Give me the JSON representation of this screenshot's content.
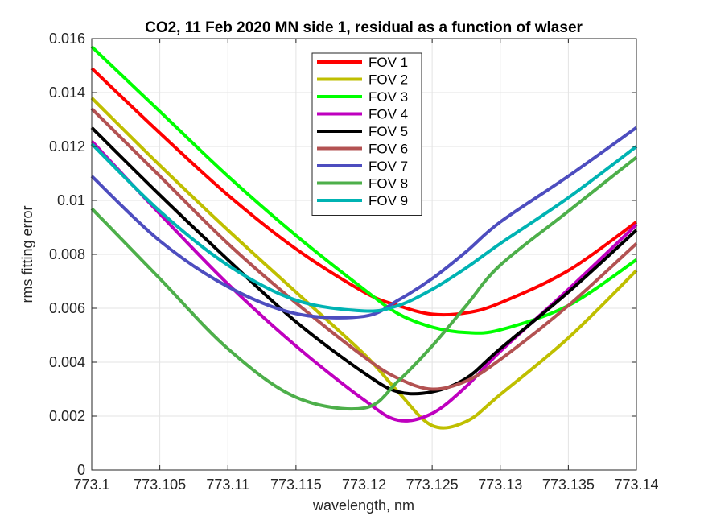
{
  "chart_data": {
    "type": "line",
    "title": "CO2, 11 Feb 2020 MN side 1, residual as a function of wlaser",
    "xlabel": "wavelength, nm",
    "ylabel": "rms fitting error",
    "xlim": [
      773.1,
      773.14
    ],
    "ylim": [
      0,
      0.016
    ],
    "xticks": [
      773.1,
      773.105,
      773.11,
      773.115,
      773.12,
      773.125,
      773.13,
      773.135,
      773.14
    ],
    "xtick_labels": [
      "773.1",
      "773.105",
      "773.11",
      "773.115",
      "773.12",
      "773.125",
      "773.13",
      "773.135",
      "773.14"
    ],
    "yticks": [
      0,
      0.002,
      0.004,
      0.006,
      0.008,
      0.01,
      0.012,
      0.014,
      0.016
    ],
    "ytick_labels": [
      "0",
      "0.002",
      "0.004",
      "0.006",
      "0.008",
      "0.01",
      "0.012",
      "0.014",
      "0.016"
    ],
    "grid": true,
    "legend_position": "top-center",
    "x": [
      773.1,
      773.105,
      773.11,
      773.115,
      773.12,
      773.1225,
      773.125,
      773.1275,
      773.13,
      773.135,
      773.14
    ],
    "series": [
      {
        "name": "FOV 1",
        "color": "#ff0000",
        "values": [
          0.0149,
          0.0125,
          0.0102,
          0.0082,
          0.0066,
          0.0061,
          0.00578,
          0.00583,
          0.0062,
          0.0074,
          0.0092
        ]
      },
      {
        "name": "FOV 2",
        "color": "#bfbf00",
        "values": [
          0.0138,
          0.0113,
          0.0089,
          0.0066,
          0.0043,
          0.0029,
          0.00165,
          0.0018,
          0.0028,
          0.0049,
          0.0074
        ]
      },
      {
        "name": "FOV 3",
        "color": "#00ff00",
        "values": [
          0.0157,
          0.0133,
          0.0109,
          0.0087,
          0.0067,
          0.0058,
          0.0053,
          0.0051,
          0.0052,
          0.0061,
          0.0078
        ]
      },
      {
        "name": "FOV 4",
        "color": "#bf00bf",
        "values": [
          0.0122,
          0.0095,
          0.0069,
          0.0046,
          0.0026,
          0.00185,
          0.0021,
          0.0031,
          0.0044,
          0.0067,
          0.0091
        ]
      },
      {
        "name": "FOV 5",
        "color": "#000000",
        "values": [
          0.0127,
          0.0102,
          0.0078,
          0.0055,
          0.0036,
          0.0029,
          0.0029,
          0.0034,
          0.0045,
          0.0066,
          0.0089
        ]
      },
      {
        "name": "FOV 6",
        "color": "#b35252",
        "values": [
          0.0134,
          0.0109,
          0.0084,
          0.0062,
          0.0042,
          0.0034,
          0.003,
          0.0033,
          0.0041,
          0.0061,
          0.0084
        ]
      },
      {
        "name": "FOV 7",
        "color": "#4d4dbf",
        "values": [
          0.0109,
          0.0085,
          0.0068,
          0.0058,
          0.0057,
          0.0063,
          0.0071,
          0.0081,
          0.0092,
          0.0109,
          0.0127
        ]
      },
      {
        "name": "FOV 8",
        "color": "#4daf4a",
        "values": [
          0.0097,
          0.0071,
          0.0045,
          0.0027,
          0.0023,
          0.0033,
          0.0046,
          0.0061,
          0.0076,
          0.0096,
          0.0116
        ]
      },
      {
        "name": "FOV 9",
        "color": "#00b3b3",
        "values": [
          0.0121,
          0.0096,
          0.0076,
          0.0063,
          0.0059,
          0.0061,
          0.0067,
          0.0075,
          0.0084,
          0.0101,
          0.012
        ]
      }
    ]
  }
}
